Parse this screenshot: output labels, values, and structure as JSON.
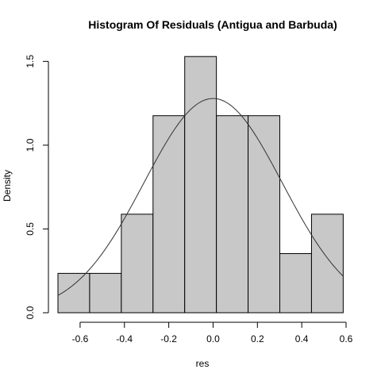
{
  "chart_data": {
    "type": "histogram",
    "title": "Histogram Of Residuals (Antigua and Barbuda)",
    "xlabel": "res",
    "ylabel": "Density",
    "xlim": [
      -0.7,
      0.6
    ],
    "ylim": [
      0,
      1.53
    ],
    "x_ticks": [
      "-0.6",
      "-0.4",
      "-0.2",
      "0.0",
      "0.2",
      "0.4",
      "0.6"
    ],
    "x_tick_values": [
      -0.6,
      -0.4,
      -0.2,
      0.0,
      0.2,
      0.4,
      0.6
    ],
    "y_ticks": [
      "0.0",
      "0.5",
      "1.0",
      "1.5"
    ],
    "y_tick_values": [
      0.0,
      0.5,
      1.0,
      1.5
    ],
    "bins": [
      {
        "from": -0.7,
        "to": -0.557,
        "density": 0.235
      },
      {
        "from": -0.557,
        "to": -0.414,
        "density": 0.235
      },
      {
        "from": -0.414,
        "to": -0.271,
        "density": 0.588
      },
      {
        "from": -0.271,
        "to": -0.128,
        "density": 1.176
      },
      {
        "from": -0.128,
        "to": 0.015,
        "density": 1.529
      },
      {
        "from": 0.015,
        "to": 0.158,
        "density": 1.176
      },
      {
        "from": 0.158,
        "to": 0.301,
        "density": 1.176
      },
      {
        "from": 0.301,
        "to": 0.444,
        "density": 0.353
      },
      {
        "from": 0.444,
        "to": 0.587,
        "density": 0.588
      }
    ],
    "normal_curve": {
      "mean": 0.0,
      "sd": 0.312
    },
    "bar_color": "#c8c8c8",
    "edge_color": "#000000"
  }
}
